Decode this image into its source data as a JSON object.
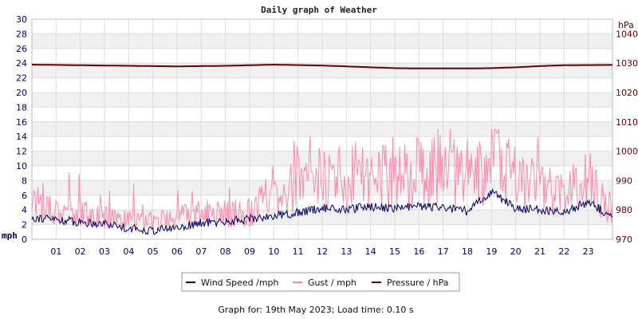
{
  "chart_data": {
    "type": "line",
    "title": "Daily graph of Weather",
    "left_axis": {
      "unit_label": "mph",
      "range": [
        0,
        30
      ],
      "ticks": [
        "0",
        "2",
        "4",
        "6",
        "8",
        "10",
        "12",
        "14",
        "16",
        "18",
        "20",
        "22",
        "24",
        "26",
        "28",
        "30"
      ]
    },
    "right_axis": {
      "unit_label": "hPa",
      "range": [
        970,
        1045
      ],
      "ticks": [
        "970",
        "980",
        "990",
        "1000",
        "1010",
        "1020",
        "1030",
        "1040"
      ]
    },
    "x_axis": {
      "range_hours": [
        0,
        24
      ],
      "tick_labels": [
        "01",
        "02",
        "03",
        "04",
        "05",
        "06",
        "07",
        "08",
        "09",
        "10",
        "11",
        "12",
        "13",
        "14",
        "15",
        "16",
        "17",
        "18",
        "19",
        "20",
        "21",
        "22",
        "23"
      ]
    },
    "grid": true,
    "banding": "alternating horizontal bands",
    "legend_placement": "bottom",
    "legend": [
      {
        "key": "wind",
        "label": "Wind Speed /mph",
        "color": "#000066"
      },
      {
        "key": "gust",
        "label": "Gust / mph",
        "color": "#ff88aa"
      },
      {
        "key": "pressure",
        "label": "Pressure / hPa",
        "color": "#660000"
      }
    ],
    "series": [
      {
        "key": "wind",
        "axis": "left",
        "x_hours": [
          0,
          1,
          2,
          3,
          4,
          5,
          6,
          7,
          8,
          9,
          10,
          11,
          12,
          13,
          14,
          15,
          16,
          17,
          18,
          19,
          20,
          21,
          22,
          23,
          24
        ],
        "values": [
          3,
          2.7,
          2.3,
          2.2,
          1.5,
          1.2,
          1.6,
          2.2,
          2.4,
          2.8,
          3.2,
          3.6,
          4.3,
          4,
          4.5,
          4.2,
          4.5,
          4.3,
          3.8,
          6.5,
          4.2,
          4,
          3.8,
          5,
          3
        ]
      },
      {
        "key": "gust",
        "axis": "left",
        "x_hours": [
          0,
          1,
          2,
          3,
          4,
          5,
          6,
          7,
          8,
          9,
          10,
          11,
          12,
          13,
          14,
          15,
          16,
          17,
          18,
          19,
          20,
          21,
          22,
          23,
          24
        ],
        "values": [
          5.5,
          4,
          3.5,
          3,
          2.5,
          2.5,
          3,
          3.5,
          3.5,
          3.5,
          7,
          7.5,
          8,
          8.5,
          9,
          8.5,
          9,
          9.5,
          8.5,
          11,
          8.5,
          7,
          6,
          8,
          4
        ]
      },
      {
        "key": "pressure",
        "axis": "right",
        "x_hours": [
          0,
          2,
          4,
          6,
          8,
          10,
          12,
          14,
          15,
          16,
          18,
          19,
          20,
          21,
          22,
          24
        ],
        "values": [
          1029.5,
          1029.3,
          1029.1,
          1028.9,
          1029.1,
          1029.5,
          1029.2,
          1028.6,
          1028.3,
          1028.2,
          1028.2,
          1028.3,
          1028.6,
          1029.0,
          1029.3,
          1029.4
        ]
      }
    ]
  },
  "footer": {
    "text": "Graph for: 19th May 2023; Load time: 0.10 s"
  }
}
